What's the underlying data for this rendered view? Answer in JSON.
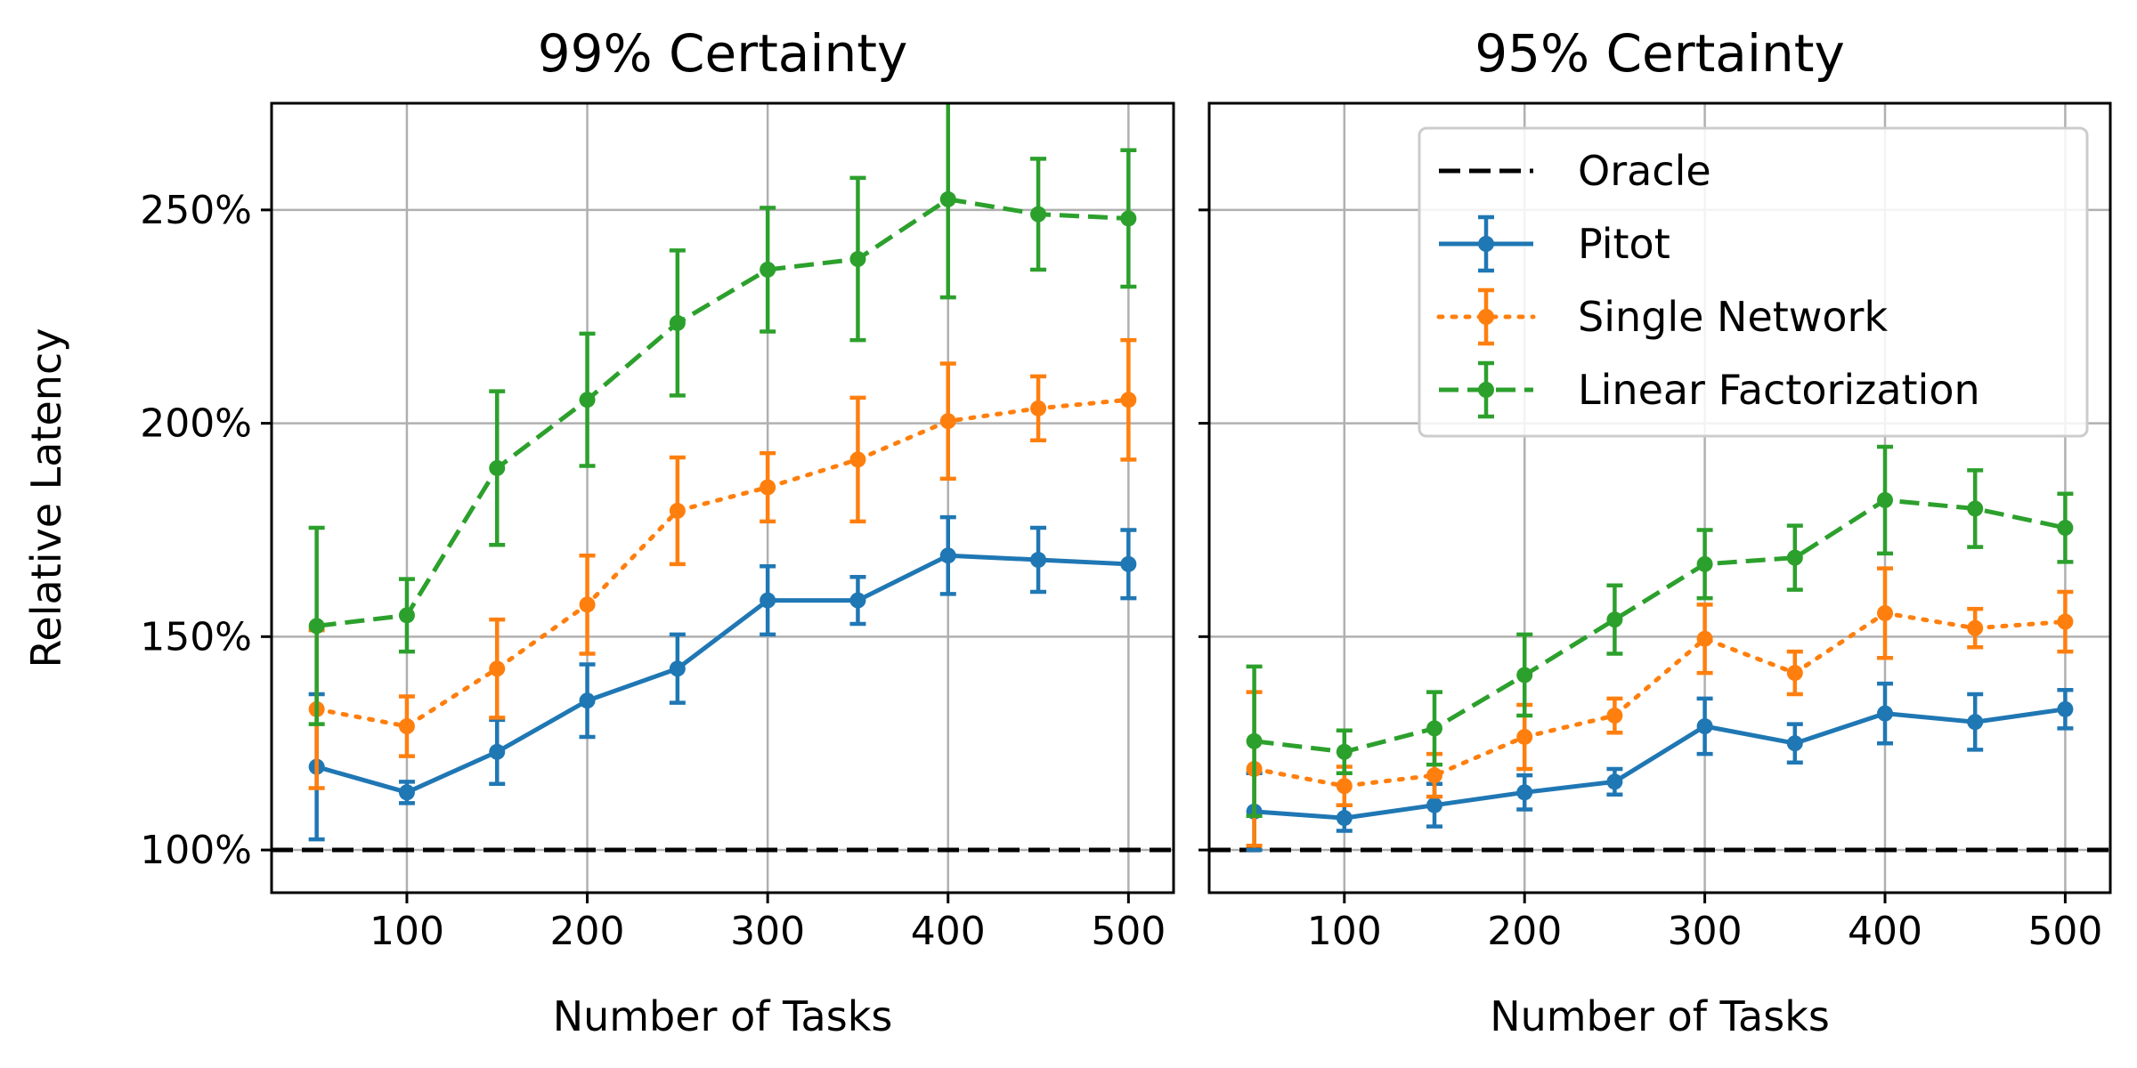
{
  "chart_data": [
    {
      "type": "line",
      "title": "99% Certainty",
      "xlabel": "Number of Tasks",
      "ylabel": "Relative Latency",
      "x": [
        50,
        100,
        150,
        200,
        250,
        300,
        350,
        400,
        450,
        500
      ],
      "xticks": [
        "100",
        "200",
        "300",
        "400",
        "500"
      ],
      "yticks": [
        "100%",
        "150%",
        "200%",
        "250%"
      ],
      "xlim": [
        25,
        525
      ],
      "ylim": [
        90,
        275
      ],
      "grid": true,
      "reference": {
        "name": "Oracle",
        "value": 100,
        "style": "dashed",
        "color": "#000000"
      },
      "series": [
        {
          "name": "Pitot",
          "color": "#1f77b4",
          "style": "solid",
          "values": [
            119.5,
            113.5,
            123,
            135,
            142.5,
            158.5,
            158.5,
            169,
            168,
            167
          ],
          "err": [
            17,
            2.5,
            7.5,
            8.5,
            8,
            8,
            5.5,
            9,
            7.5,
            8
          ]
        },
        {
          "name": "Single Network",
          "color": "#ff7f0e",
          "style": "dotted",
          "values": [
            133,
            129,
            142.5,
            157.5,
            179.5,
            185,
            191.5,
            200.5,
            203.5,
            205.5
          ],
          "err": [
            18.5,
            7,
            11.5,
            11.5,
            12.5,
            8,
            14.5,
            13.5,
            7.5,
            14
          ]
        },
        {
          "name": "Linear Factorization",
          "color": "#2ca02c",
          "style": "dashed",
          "values": [
            152.5,
            155,
            189.5,
            205.5,
            223.5,
            236,
            238.5,
            252.5,
            249,
            248
          ],
          "err": [
            23,
            8.5,
            18,
            15.5,
            17,
            14.5,
            19,
            23,
            13,
            16
          ]
        }
      ]
    },
    {
      "type": "line",
      "title": "95% Certainty",
      "xlabel": "Number of Tasks",
      "ylabel": "",
      "x": [
        50,
        100,
        150,
        200,
        250,
        300,
        350,
        400,
        450,
        500
      ],
      "xticks": [
        "100",
        "200",
        "300",
        "400",
        "500"
      ],
      "yticks": [],
      "xlim": [
        25,
        525
      ],
      "ylim": [
        90,
        275
      ],
      "grid": true,
      "legend": "upper-right",
      "reference": {
        "name": "Oracle",
        "value": 100,
        "style": "dashed",
        "color": "#000000"
      },
      "series": [
        {
          "name": "Pitot",
          "color": "#1f77b4",
          "style": "solid",
          "values": [
            109,
            107.5,
            110.5,
            113.5,
            116,
            129,
            125,
            132,
            130,
            133
          ],
          "err": [
            9,
            3,
            5,
            4,
            3,
            6.5,
            4.5,
            7,
            6.5,
            4.5
          ]
        },
        {
          "name": "Single Network",
          "color": "#ff7f0e",
          "style": "dotted",
          "values": [
            119,
            115,
            117.5,
            126.5,
            131.5,
            149.5,
            141.5,
            155.5,
            152,
            153.5
          ],
          "err": [
            18,
            4.5,
            5,
            7.5,
            4,
            8,
            5,
            10.5,
            4.5,
            7
          ]
        },
        {
          "name": "Linear Factorization",
          "color": "#2ca02c",
          "style": "dashed",
          "values": [
            125.5,
            123,
            128.5,
            141,
            154,
            167,
            168.5,
            182,
            180,
            175.5
          ],
          "err": [
            17.5,
            5,
            8.5,
            9.5,
            8,
            8,
            7.5,
            12.5,
            9,
            8
          ]
        }
      ]
    }
  ]
}
